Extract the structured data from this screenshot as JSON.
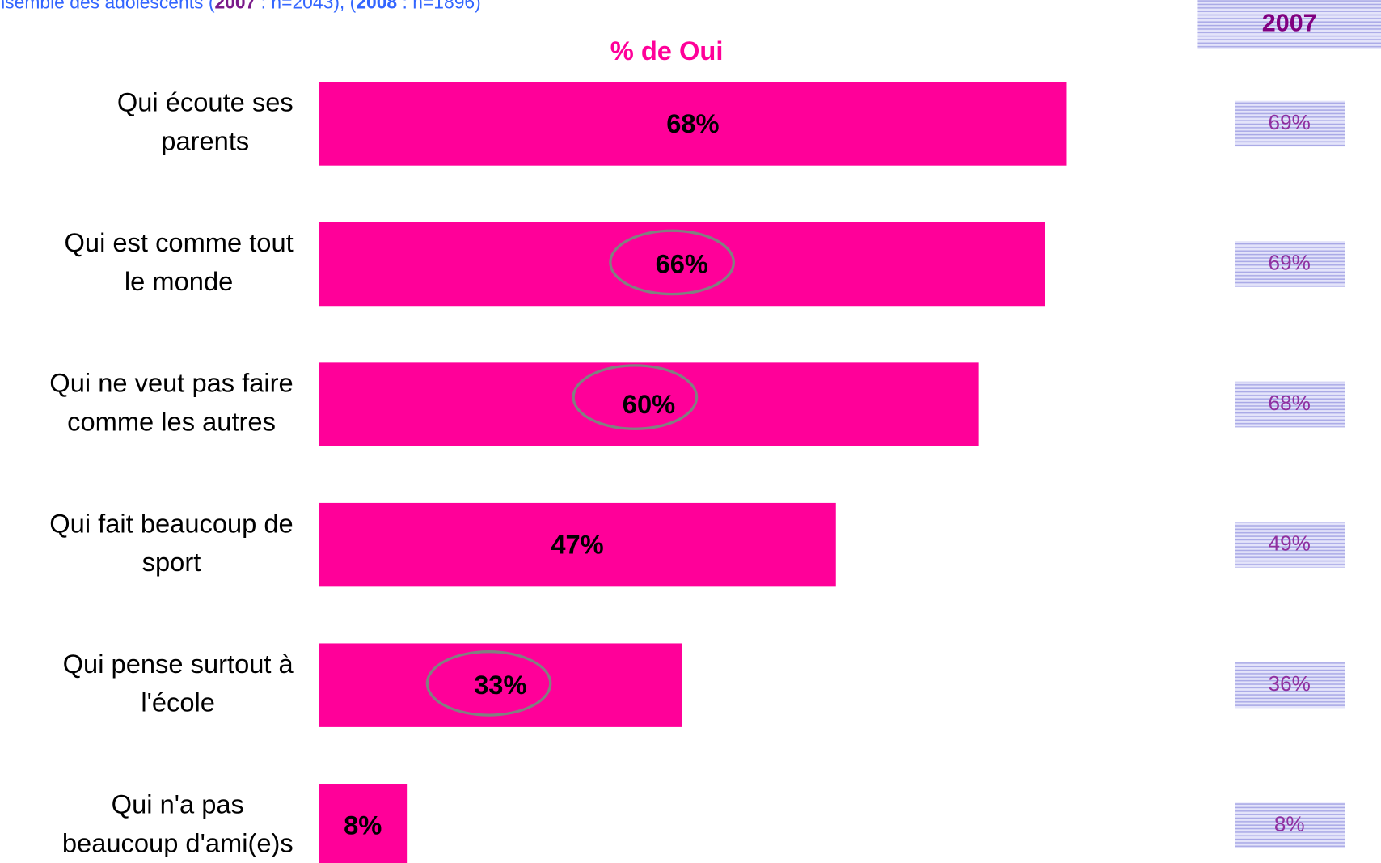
{
  "chart_data": {
    "type": "hbar",
    "subtitle_parts": [
      "nsemble des adolescents (",
      "2007",
      " : n=2043), (",
      "2008",
      " : n=1896)"
    ],
    "title": "% de Oui",
    "categories": [
      [
        "Qui écoute ses",
        "parents"
      ],
      [
        "Qui est comme tout",
        "le monde"
      ],
      [
        "Qui ne veut pas faire",
        "comme les autres"
      ],
      [
        "Qui fait beaucoup de",
        "sport"
      ],
      [
        "Qui pense surtout à",
        "l'école"
      ],
      [
        "Qui n'a pas",
        "beaucoup d'ami(e)s"
      ]
    ],
    "values": [
      68,
      66,
      60,
      47,
      33,
      8
    ],
    "value_labels": [
      "68%",
      "66%",
      "60%",
      "47%",
      "33%",
      "8%"
    ],
    "color": "#ff0099",
    "xlim": [
      0,
      100
    ],
    "comparison": {
      "header": "2007",
      "values": [
        69,
        69,
        68,
        49,
        36,
        8
      ],
      "value_labels": [
        "69%",
        "69%",
        "68%",
        "49%",
        "36%",
        "8%"
      ]
    }
  }
}
